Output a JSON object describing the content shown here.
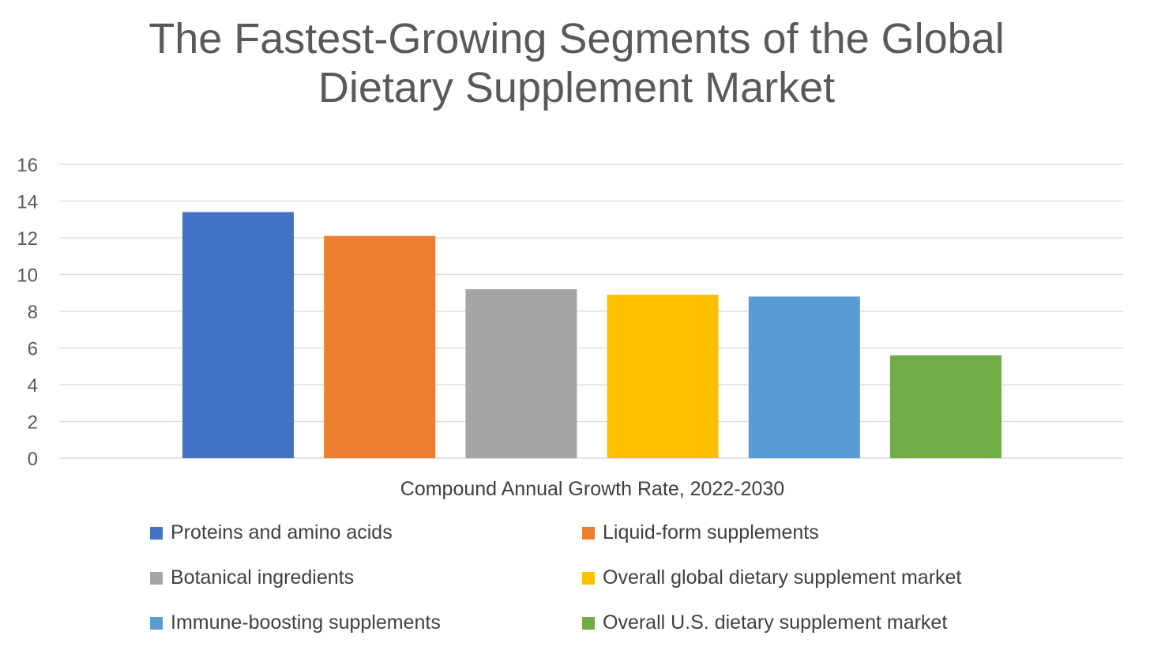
{
  "chart_data": {
    "type": "bar",
    "title": "The Fastest-Growing Segments of the Global Dietary Supplement Market",
    "title_lines": [
      "The Fastest-Growing Segments of the Global",
      "Dietary Supplement Market"
    ],
    "xlabel": "Compound Annual Growth Rate, 2022-2030",
    "ylabel": "",
    "ylim": [
      0,
      16
    ],
    "yticks": [
      0,
      2,
      4,
      6,
      8,
      10,
      12,
      14,
      16
    ],
    "grid": true,
    "legend_position": "bottom",
    "series": [
      {
        "name": "Proteins and amino acids",
        "value": 13.4,
        "color": "#4472C4"
      },
      {
        "name": "Liquid-form supplements",
        "value": 12.1,
        "color": "#ED7D31"
      },
      {
        "name": "Botanical ingredients",
        "value": 9.2,
        "color": "#A5A5A5"
      },
      {
        "name": "Overall global dietary supplement market",
        "value": 8.9,
        "color": "#FFC000"
      },
      {
        "name": "Immune-boosting supplements",
        "value": 8.8,
        "color": "#5B9BD5"
      },
      {
        "name": "Overall U.S. dietary supplement market",
        "value": 5.6,
        "color": "#70AD47"
      }
    ]
  }
}
